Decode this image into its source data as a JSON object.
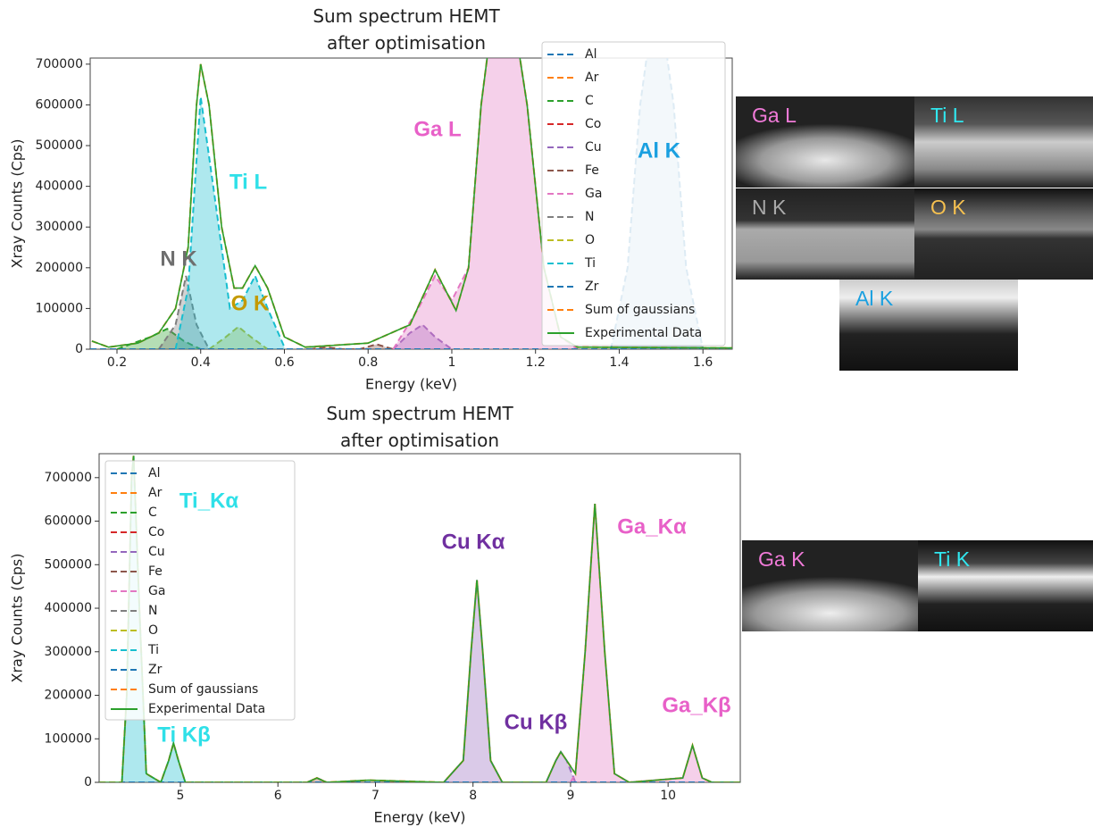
{
  "chart_data": [
    {
      "type": "line",
      "title": "Sum spectrum HEMT after optimisation",
      "x_label": "Energy (keV)",
      "y_label": "Xray Counts (Cps)",
      "xlim": [
        0.136,
        1.67
      ],
      "ylim": [
        0,
        715000
      ],
      "xticks": [
        0.2,
        0.4,
        0.6,
        0.8,
        1.0,
        1.2,
        1.4,
        1.6
      ],
      "yticks": [
        0,
        100000,
        200000,
        300000,
        400000,
        500000,
        600000,
        700000
      ],
      "legend": "upper right",
      "series": [
        {
          "name": "Al",
          "color": "#1f77b4",
          "dash": true,
          "fill": true,
          "x": [
            1.38,
            1.42,
            1.45,
            1.49,
            1.53,
            1.56,
            1.6
          ],
          "values": [
            0,
            200000,
            600000,
            900000,
            600000,
            200000,
            0
          ]
        },
        {
          "name": "Ar",
          "color": "#ff7f0e",
          "dash": true,
          "x": [
            0.136,
            1.67
          ],
          "values": [
            0,
            0
          ]
        },
        {
          "name": "C",
          "color": "#2ca02c",
          "dash": true,
          "fill": true,
          "x": [
            0.2,
            0.28,
            0.32,
            0.36,
            0.4
          ],
          "values": [
            0,
            30000,
            50000,
            20000,
            0
          ]
        },
        {
          "name": "Co",
          "color": "#d62728",
          "dash": true,
          "x": [
            0.136,
            1.67
          ],
          "values": [
            0,
            0
          ]
        },
        {
          "name": "Cu",
          "color": "#9467bd",
          "dash": true,
          "fill": true,
          "x": [
            0.86,
            0.9,
            0.93,
            0.96,
            1.0
          ],
          "values": [
            0,
            40000,
            60000,
            30000,
            0
          ]
        },
        {
          "name": "Fe",
          "color": "#8c564b",
          "dash": true,
          "fill": true,
          "x": [
            0.66,
            0.7,
            0.74,
            0.78,
            0.82,
            0.86
          ],
          "values": [
            0,
            5000,
            0,
            0,
            12000,
            0
          ]
        },
        {
          "name": "Ga",
          "color": "#e377c2",
          "dash": true,
          "fill": true,
          "x": [
            0.86,
            0.92,
            0.96,
            1.0,
            1.04,
            1.07,
            1.12,
            1.18,
            1.22,
            1.26,
            1.3
          ],
          "values": [
            0,
            100000,
            180000,
            120000,
            200000,
            600000,
            1000000,
            600000,
            200000,
            30000,
            0
          ]
        },
        {
          "name": "N",
          "color": "#7f7f7f",
          "dash": true,
          "fill": true,
          "x": [
            0.3,
            0.34,
            0.365,
            0.39,
            0.42
          ],
          "values": [
            0,
            60000,
            180000,
            60000,
            0
          ]
        },
        {
          "name": "O",
          "color": "#bcbd22",
          "dash": true,
          "fill": true,
          "x": [
            0.42,
            0.46,
            0.49,
            0.52,
            0.56
          ],
          "values": [
            0,
            30000,
            55000,
            30000,
            0
          ]
        },
        {
          "name": "Ti",
          "color": "#17becf",
          "dash": true,
          "fill": true,
          "x": [
            0.34,
            0.37,
            0.4,
            0.43,
            0.47,
            0.5,
            0.53,
            0.56,
            0.6
          ],
          "values": [
            0,
            150000,
            620000,
            400000,
            100000,
            120000,
            180000,
            100000,
            5000
          ]
        },
        {
          "name": "Zr",
          "color": "#1f77b4",
          "dash": true,
          "x": [
            0.136,
            1.67
          ],
          "values": [
            0,
            0
          ]
        },
        {
          "name": "Sum of gaussians",
          "color": "#ff7f0e",
          "dash": true,
          "x": [
            0.14,
            0.18,
            0.25,
            0.3,
            0.34,
            0.37,
            0.39,
            0.4,
            0.42,
            0.45,
            0.48,
            0.5,
            0.53,
            0.56,
            0.6,
            0.65,
            0.8,
            0.9,
            0.96,
            1.01,
            1.04,
            1.07,
            1.12,
            1.18,
            1.22,
            1.26,
            1.3,
            1.67
          ],
          "values": [
            20000,
            5000,
            15000,
            40000,
            100000,
            250000,
            600000,
            700000,
            600000,
            300000,
            150000,
            150000,
            205000,
            150000,
            30000,
            5000,
            15000,
            60000,
            195000,
            95000,
            200000,
            600000,
            1000000,
            600000,
            200000,
            30000,
            5000,
            3000
          ]
        },
        {
          "name": "Experimental Data",
          "color": "#2ca02c",
          "dash": false,
          "x": [
            0.14,
            0.18,
            0.25,
            0.3,
            0.34,
            0.37,
            0.39,
            0.4,
            0.42,
            0.45,
            0.48,
            0.5,
            0.53,
            0.56,
            0.6,
            0.65,
            0.8,
            0.9,
            0.96,
            1.01,
            1.04,
            1.07,
            1.12,
            1.18,
            1.22,
            1.26,
            1.3,
            1.67
          ],
          "values": [
            20000,
            5000,
            15000,
            40000,
            100000,
            250000,
            600000,
            700000,
            600000,
            300000,
            150000,
            150000,
            205000,
            150000,
            30000,
            5000,
            15000,
            60000,
            195000,
            95000,
            200000,
            600000,
            1000000,
            600000,
            200000,
            30000,
            5000,
            3000
          ]
        }
      ],
      "annotations": [
        {
          "text": "N K",
          "color": "#6e6e6e"
        },
        {
          "text": "Ti L",
          "color": "#2fe0e8"
        },
        {
          "text": "O K",
          "color": "#c49a00"
        },
        {
          "text": "Ga L",
          "color": "#e860c8"
        },
        {
          "text": "Al K",
          "color": "#1aa0e0"
        }
      ]
    },
    {
      "type": "line",
      "title": "Sum spectrum HEMT after optimisation",
      "x_label": "Energy (keV)",
      "y_label": "Xray Counts (Cps)",
      "xlim": [
        4.167,
        10.74
      ],
      "ylim": [
        0,
        755000
      ],
      "xticks": [
        5,
        6,
        7,
        8,
        9,
        10
      ],
      "yticks": [
        0,
        100000,
        200000,
        300000,
        400000,
        500000,
        600000,
        700000
      ],
      "legend": "upper left",
      "series": [
        {
          "name": "Al",
          "color": "#1f77b4",
          "dash": true,
          "x": [
            4.167,
            10.74
          ],
          "values": [
            0,
            0
          ]
        },
        {
          "name": "Ar",
          "color": "#ff7f0e",
          "dash": true,
          "x": [
            4.167,
            10.74
          ],
          "values": [
            0,
            0
          ]
        },
        {
          "name": "C",
          "color": "#2ca02c",
          "dash": true,
          "x": [
            4.167,
            10.74
          ],
          "values": [
            0,
            0
          ]
        },
        {
          "name": "Co",
          "color": "#d62728",
          "dash": true,
          "x": [
            4.167,
            10.74
          ],
          "values": [
            0,
            0
          ]
        },
        {
          "name": "Cu",
          "color": "#9467bd",
          "dash": true,
          "fill": true,
          "x": [
            7.7,
            7.9,
            7.98,
            8.04,
            8.1,
            8.18,
            8.3,
            8.75,
            8.85,
            8.9,
            8.96,
            9.05
          ],
          "values": [
            0,
            50000,
            300000,
            465000,
            300000,
            50000,
            0,
            0,
            50000,
            70000,
            50000,
            0
          ]
        },
        {
          "name": "Fe",
          "color": "#8c564b",
          "dash": true,
          "fill": true,
          "x": [
            6.3,
            6.4,
            6.5
          ],
          "values": [
            0,
            10000,
            0
          ]
        },
        {
          "name": "Ga",
          "color": "#e377c2",
          "dash": true,
          "fill": true,
          "x": [
            9.0,
            9.05,
            9.15,
            9.25,
            9.35,
            9.45,
            9.6,
            10.15,
            10.25,
            10.35,
            10.45
          ],
          "values": [
            0,
            20000,
            300000,
            640000,
            300000,
            20000,
            0,
            10000,
            85000,
            10000,
            0
          ]
        },
        {
          "name": "N",
          "color": "#7f7f7f",
          "dash": true,
          "x": [
            4.167,
            10.74
          ],
          "values": [
            0,
            0
          ]
        },
        {
          "name": "O",
          "color": "#bcbd22",
          "dash": true,
          "x": [
            4.167,
            10.74
          ],
          "values": [
            0,
            0
          ]
        },
        {
          "name": "Ti",
          "color": "#17becf",
          "dash": true,
          "fill": true,
          "x": [
            4.4,
            4.45,
            4.5,
            4.52,
            4.58,
            4.65,
            4.8,
            4.88,
            4.93,
            4.98,
            5.05
          ],
          "values": [
            0,
            200000,
            700000,
            750000,
            400000,
            20000,
            0,
            50000,
            90000,
            50000,
            0
          ]
        },
        {
          "name": "Zr",
          "color": "#1f77b4",
          "dash": true,
          "x": [
            4.167,
            10.74
          ],
          "values": [
            0,
            0
          ]
        },
        {
          "name": "Sum of gaussians",
          "color": "#ff7f0e",
          "dash": true,
          "x": [
            4.17,
            4.4,
            4.45,
            4.5,
            4.52,
            4.58,
            4.65,
            4.8,
            4.88,
            4.93,
            4.98,
            5.05,
            6.3,
            6.4,
            6.5,
            6.93,
            7.7,
            7.9,
            7.98,
            8.04,
            8.1,
            8.18,
            8.3,
            8.75,
            8.85,
            8.9,
            8.96,
            9.05,
            9.15,
            9.25,
            9.35,
            9.45,
            9.6,
            10.15,
            10.25,
            10.35,
            10.45,
            10.74
          ],
          "values": [
            0,
            0,
            200000,
            700000,
            750000,
            400000,
            20000,
            0,
            50000,
            90000,
            50000,
            0,
            0,
            10000,
            0,
            5000,
            0,
            50000,
            300000,
            465000,
            300000,
            50000,
            0,
            0,
            50000,
            70000,
            50000,
            20000,
            300000,
            640000,
            300000,
            20000,
            0,
            10000,
            85000,
            10000,
            0,
            0
          ]
        },
        {
          "name": "Experimental Data",
          "color": "#2ca02c",
          "dash": false,
          "x": [
            4.17,
            4.4,
            4.45,
            4.5,
            4.52,
            4.58,
            4.65,
            4.8,
            4.88,
            4.93,
            4.98,
            5.05,
            6.3,
            6.4,
            6.5,
            6.93,
            7.7,
            7.9,
            7.98,
            8.04,
            8.1,
            8.18,
            8.3,
            8.75,
            8.85,
            8.9,
            8.96,
            9.05,
            9.15,
            9.25,
            9.35,
            9.45,
            9.6,
            10.15,
            10.25,
            10.35,
            10.45,
            10.74
          ],
          "values": [
            0,
            0,
            200000,
            700000,
            750000,
            400000,
            20000,
            0,
            50000,
            90000,
            50000,
            0,
            0,
            10000,
            0,
            5000,
            0,
            50000,
            300000,
            465000,
            300000,
            50000,
            0,
            0,
            50000,
            70000,
            50000,
            20000,
            300000,
            640000,
            300000,
            20000,
            0,
            10000,
            85000,
            10000,
            0,
            0
          ]
        }
      ],
      "annotations": [
        {
          "text": "Ti_Kα",
          "color": "#2fe0e8"
        },
        {
          "text": "Cu Kα",
          "color": "#7030a0"
        },
        {
          "text": "Ga_Kα",
          "color": "#e860c8"
        },
        {
          "text": "Cu Kβ",
          "color": "#7030a0"
        },
        {
          "text": "Ga_Kβ",
          "color": "#e860c8"
        },
        {
          "text": "Ti Kβ",
          "color": "#2fe0e8"
        }
      ]
    }
  ],
  "maps": [
    {
      "label": "Ga L",
      "color": "#f07ad8"
    },
    {
      "label": "Ti L",
      "color": "#30e8f0"
    },
    {
      "label": "N K",
      "color": "#aaaaaa"
    },
    {
      "label": "O K",
      "color": "#f5c050"
    },
    {
      "label": "Al K",
      "color": "#1aa0e0"
    },
    {
      "label": "Ga K",
      "color": "#f07ad8"
    },
    {
      "label": "Ti K",
      "color": "#30e8f0"
    }
  ]
}
